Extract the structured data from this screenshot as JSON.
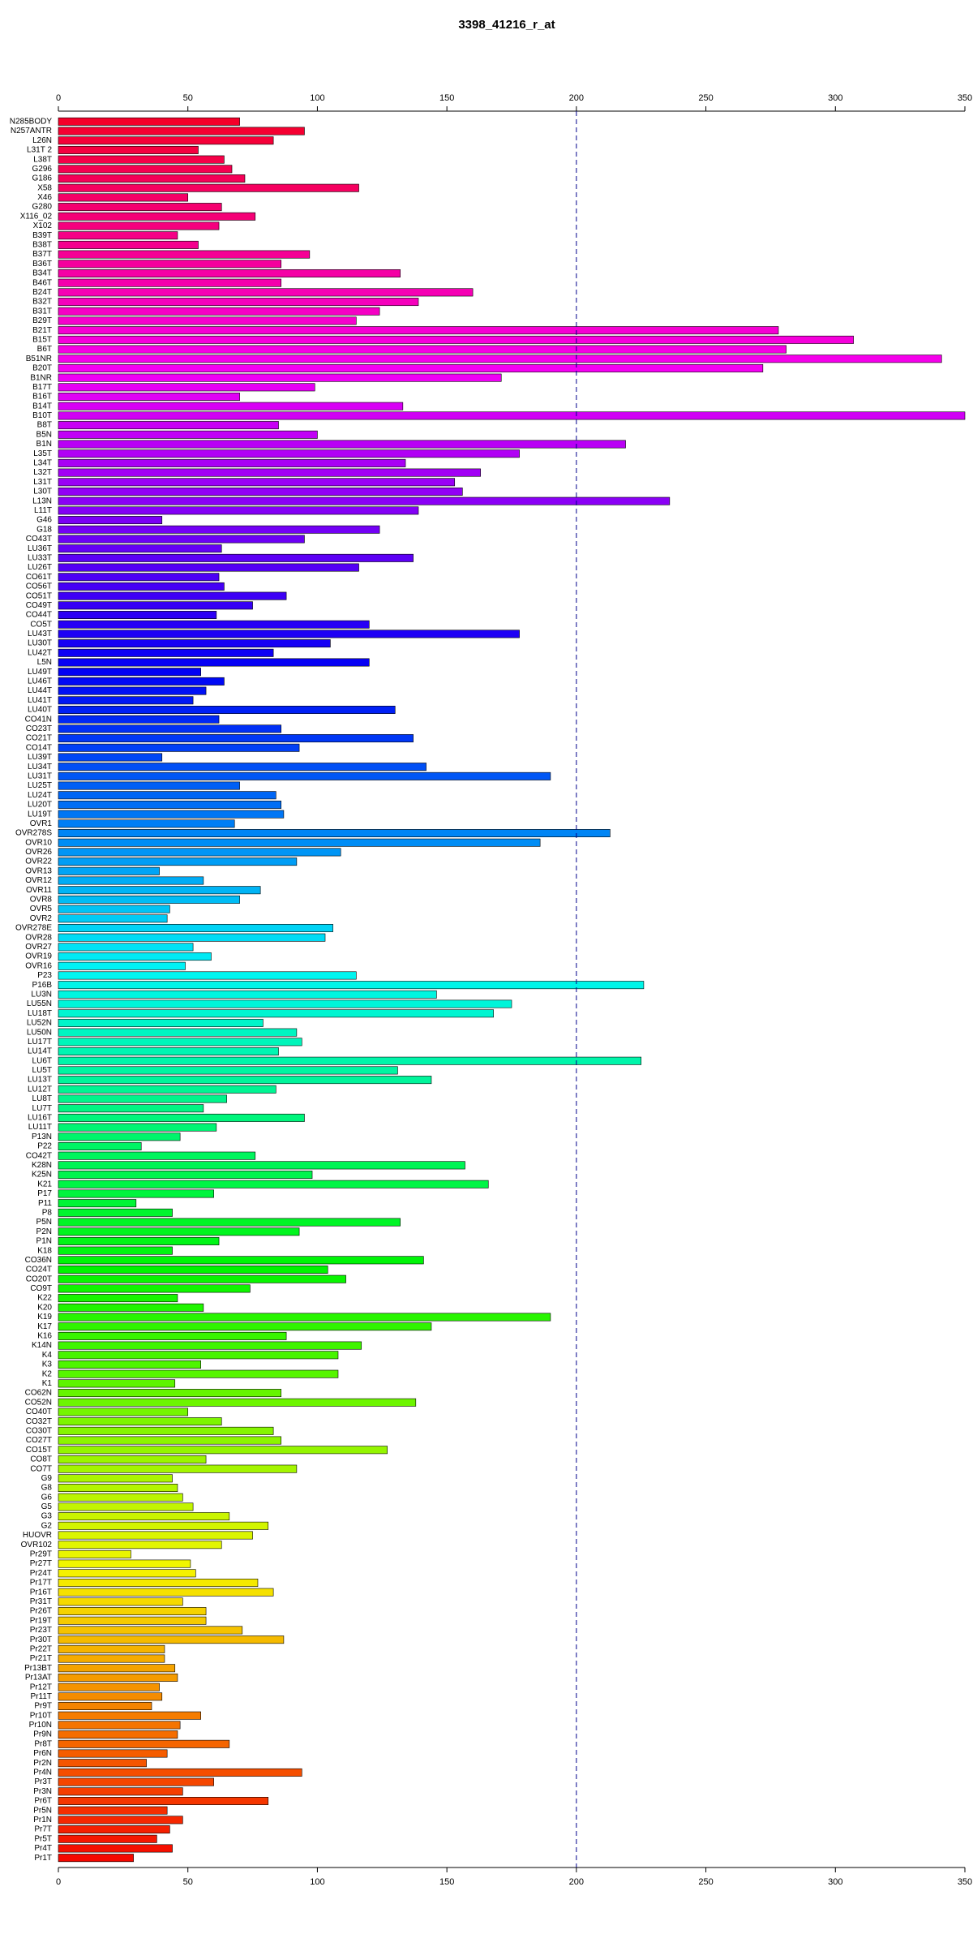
{
  "chart_data": {
    "type": "hbar",
    "title": "3398_41216_r_at",
    "categories": [
      "N285BODY",
      "N257ANTR",
      "L26N",
      "L31T 2",
      "L38T",
      "G296",
      "G186",
      "X58",
      "X46",
      "G280",
      "X116_02",
      "X102",
      "B39T",
      "B38T",
      "B37T",
      "B36T",
      "B34T",
      "B46T",
      "B24T",
      "B32T",
      "B31T",
      "B29T",
      "B21T",
      "B15T",
      "B6T",
      "B51NR",
      "B20T",
      "B1NR",
      "B17T",
      "B16T",
      "B14T",
      "B10T",
      "B8T",
      "B5N",
      "B1N",
      "L35T",
      "L34T",
      "L32T",
      "L31T",
      "L30T",
      "L13N",
      "L11T",
      "G46",
      "G18",
      "CO43T",
      "LU36T",
      "LU33T",
      "LU26T",
      "CO61T",
      "CO56T",
      "CO51T",
      "CO49T",
      "CO44T",
      "CO5T",
      "LU43T",
      "LU30T",
      "LU42T",
      "L5N",
      "LU49T",
      "LU46T",
      "LU44T",
      "LU41T",
      "LU40T",
      "CO41N",
      "CO23T",
      "CO21T",
      "CO14T",
      "LU39T",
      "LU34T",
      "LU31T",
      "LU25T",
      "LU24T",
      "LU20T",
      "LU19T",
      "OVR1",
      "OVR278S",
      "OVR10",
      "OVR26",
      "OVR22",
      "OVR13",
      "OVR12",
      "OVR11",
      "OVR8",
      "OVR5",
      "OVR2",
      "OVR278E",
      "OVR28",
      "OVR27",
      "OVR19",
      "OVR16",
      "P23",
      "P16B",
      "LU3N",
      "LU55N",
      "LU18T",
      "LU52N",
      "LU50N",
      "LU17T",
      "LU14T",
      "LU6T",
      "LU5T",
      "LU13T",
      "LU12T",
      "LU8T",
      "LU7T",
      "LU16T",
      "LU11T",
      "P13N",
      "P22",
      "CO42T",
      "K28N",
      "K25N",
      "K21",
      "P17",
      "P11",
      "P8",
      "P5N",
      "P2N",
      "P1N",
      "K18",
      "CO36N",
      "CO24T",
      "CO20T",
      "CO9T",
      "K22",
      "K20",
      "K19",
      "K17",
      "K16",
      "K14N",
      "K4",
      "K3",
      "K2",
      "K1",
      "CO62N",
      "CO52N",
      "CO40T",
      "CO32T",
      "CO30T",
      "CO27T",
      "CO15T",
      "CO8T",
      "CO7T",
      "G9",
      "G8",
      "G6",
      "G5",
      "G3",
      "G2",
      "HUOVR",
      "OVR102",
      "Pr29T",
      "Pr27T",
      "Pr24T",
      "Pr17T",
      "Pr16T",
      "Pr31T",
      "Pr26T",
      "Pr19T",
      "Pr23T",
      "Pr30T",
      "Pr22T",
      "Pr21T",
      "Pr13BT",
      "Pr13AT",
      "Pr12T",
      "Pr11T",
      "Pr9T",
      "Pr10T",
      "Pr10N",
      "Pr9N",
      "Pr8T",
      "Pr6N",
      "Pr2N",
      "Pr4N",
      "Pr3T",
      "Pr3N",
      "Pr6T",
      "Pr5N",
      "Pr1N",
      "Pr7T",
      "Pr5T",
      "Pr4T",
      "Pr1T"
    ],
    "values": [
      70,
      95,
      83,
      54,
      64,
      67,
      72,
      116,
      50,
      63,
      76,
      62,
      46,
      54,
      97,
      86,
      132,
      86,
      160,
      139,
      124,
      115,
      278,
      307,
      281,
      341,
      272,
      171,
      99,
      70,
      133,
      350,
      85,
      100,
      219,
      178,
      134,
      163,
      153,
      156,
      236,
      139,
      40,
      124,
      95,
      63,
      137,
      116,
      62,
      64,
      88,
      75,
      61,
      120,
      178,
      105,
      83,
      120,
      55,
      64,
      57,
      52,
      130,
      62,
      86,
      137,
      93,
      40,
      142,
      190,
      70,
      84,
      86,
      87,
      68,
      213,
      186,
      109,
      92,
      39,
      56,
      78,
      70,
      43,
      42,
      106,
      103,
      52,
      59,
      49,
      115,
      226,
      146,
      175,
      168,
      79,
      92,
      94,
      85,
      225,
      131,
      144,
      84,
      65,
      56,
      95,
      61,
      47,
      32,
      76,
      157,
      98,
      166,
      60,
      30,
      44,
      132,
      93,
      62,
      44,
      141,
      104,
      111,
      74,
      46,
      56,
      190,
      144,
      88,
      117,
      108,
      55,
      108,
      45,
      86,
      138,
      50,
      63,
      83,
      86,
      127,
      57,
      92,
      44,
      46,
      48,
      52,
      66,
      81,
      75,
      63,
      28,
      51,
      53,
      77,
      83,
      48,
      57,
      57,
      71,
      87,
      41,
      41,
      45,
      46,
      39,
      40,
      36,
      55,
      47,
      46,
      66,
      42,
      34,
      94,
      60,
      48,
      81,
      42,
      48,
      43,
      38,
      44,
      29
    ],
    "colormap": "rainbow",
    "xlim": [
      0,
      350
    ],
    "xticks": [
      0,
      50,
      100,
      150,
      200,
      250,
      300,
      350
    ],
    "vline": 200
  }
}
